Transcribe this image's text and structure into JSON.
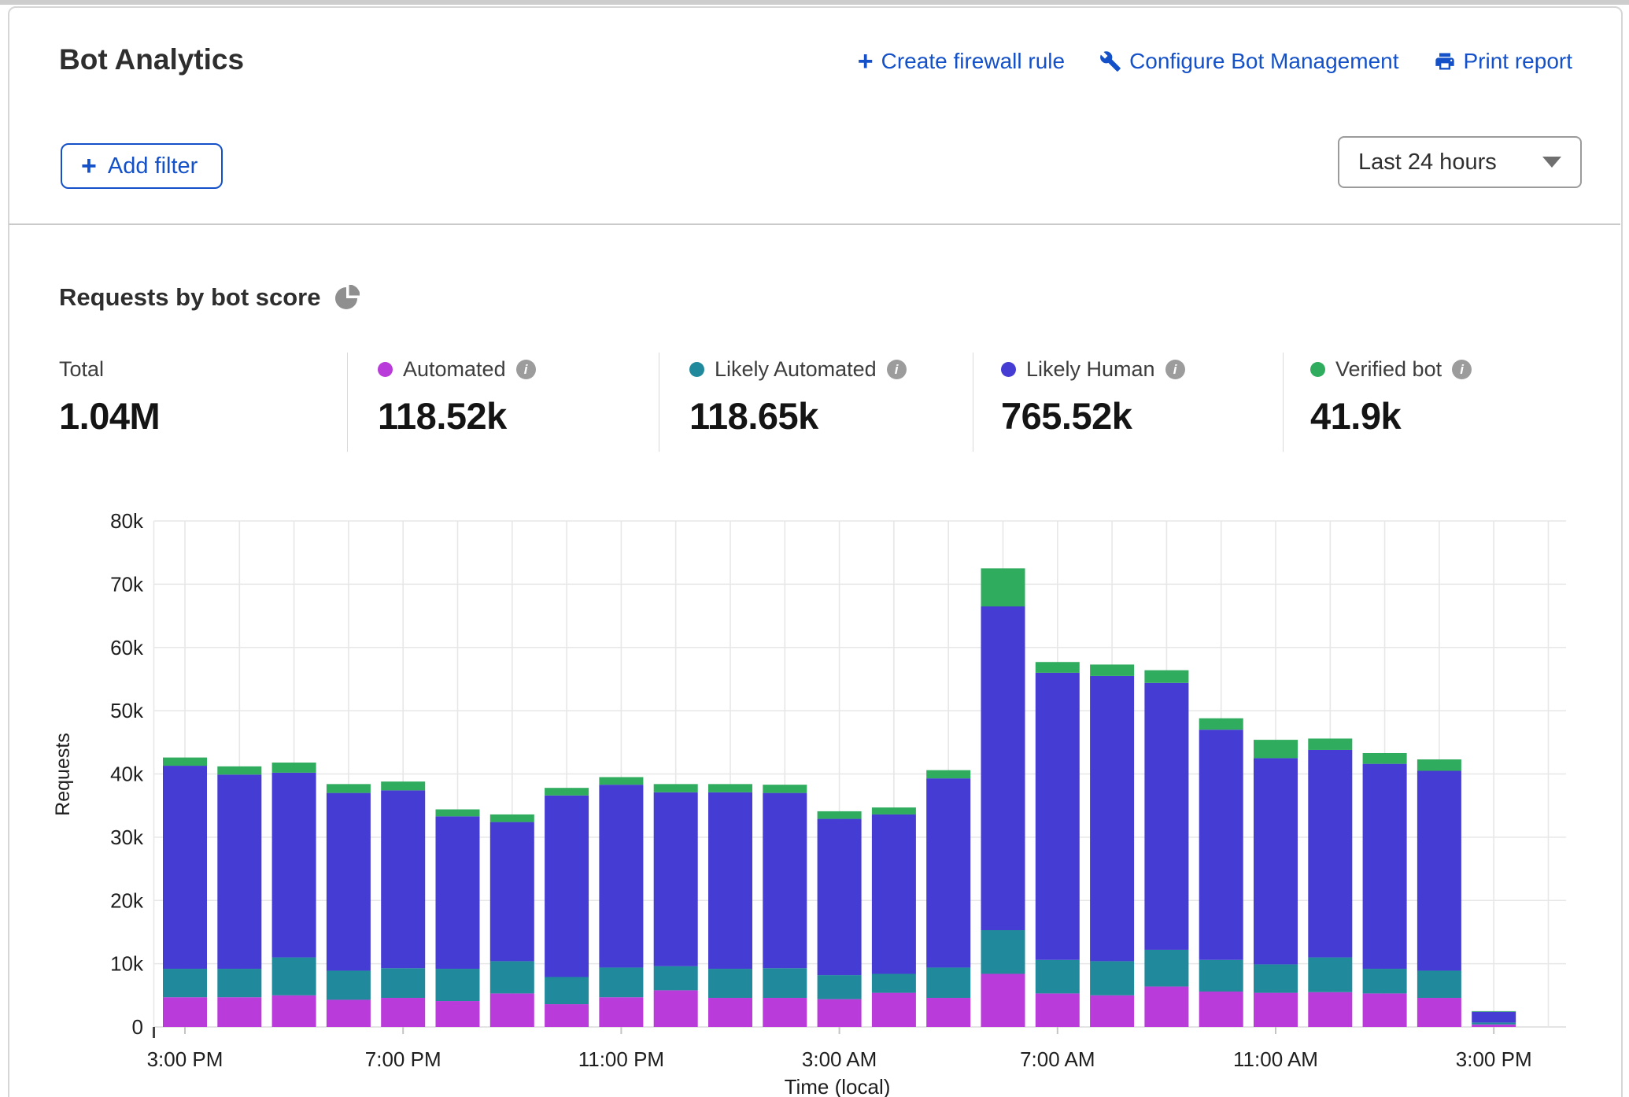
{
  "header": {
    "title": "Bot Analytics",
    "actions": [
      {
        "label": "Create firewall rule",
        "icon": "plus"
      },
      {
        "label": "Configure Bot Management",
        "icon": "wrench"
      },
      {
        "label": "Print report",
        "icon": "printer"
      }
    ],
    "add_filter_label": "Add filter",
    "time_range": "Last 24 hours"
  },
  "section": {
    "title": "Requests by bot score"
  },
  "stats": {
    "total": {
      "label": "Total",
      "value": "1.04M"
    },
    "series": [
      {
        "label": "Automated",
        "value": "118.52k",
        "color": "#b93bd9"
      },
      {
        "label": "Likely Automated",
        "value": "118.65k",
        "color": "#20899b"
      },
      {
        "label": "Likely Human",
        "value": "765.52k",
        "color": "#453cd3"
      },
      {
        "label": "Verified bot",
        "value": "41.9k",
        "color": "#2fac5d"
      }
    ]
  },
  "chart_data": {
    "type": "bar",
    "stacked": true,
    "title": "Requests by bot score",
    "xlabel": "Time (local)",
    "ylabel": "Requests",
    "ylim": [
      0,
      80000
    ],
    "grid": true,
    "legend_position": "stats row above chart",
    "y_ticks": [
      "0",
      "10k",
      "20k",
      "30k",
      "40k",
      "50k",
      "60k",
      "70k",
      "80k"
    ],
    "x_tick_labels": [
      "3:00 PM",
      "7:00 PM",
      "11:00 PM",
      "3:00 AM",
      "7:00 AM",
      "11:00 AM",
      "3:00 PM"
    ],
    "x_tick_positions": [
      0,
      4,
      8,
      12,
      16,
      20,
      24
    ],
    "categories": [
      "3:00 PM",
      "4:00 PM",
      "5:00 PM",
      "6:00 PM",
      "7:00 PM",
      "8:00 PM",
      "9:00 PM",
      "10:00 PM",
      "11:00 PM",
      "12:00 AM",
      "1:00 AM",
      "2:00 AM",
      "3:00 AM",
      "4:00 AM",
      "5:00 AM",
      "6:00 AM",
      "7:00 AM",
      "8:00 AM",
      "9:00 AM",
      "10:00 AM",
      "11:00 AM",
      "12:00 PM",
      "1:00 PM",
      "2:00 PM",
      "3:00 PM"
    ],
    "series": [
      {
        "name": "Automated",
        "color": "#b93bd9",
        "values": [
          4700,
          4700,
          5000,
          4300,
          4600,
          4100,
          5300,
          3600,
          4700,
          5800,
          4600,
          4600,
          4400,
          5400,
          4600,
          8400,
          5300,
          5000,
          6400,
          5600,
          5400,
          5500,
          5300,
          4600,
          400
        ]
      },
      {
        "name": "Likely Automated",
        "color": "#20899b",
        "values": [
          4500,
          4500,
          6000,
          4600,
          4700,
          5100,
          5100,
          4300,
          4700,
          3800,
          4600,
          4700,
          3800,
          3000,
          4800,
          6900,
          5300,
          5400,
          5800,
          5000,
          4500,
          5500,
          3900,
          4300,
          300
        ]
      },
      {
        "name": "Likely Human",
        "color": "#453cd3",
        "values": [
          32100,
          30700,
          29200,
          28100,
          28100,
          24100,
          22000,
          28700,
          28900,
          27500,
          27900,
          27700,
          24700,
          25200,
          29900,
          51200,
          45400,
          45100,
          42200,
          36400,
          32600,
          32800,
          32400,
          31600,
          1700
        ]
      },
      {
        "name": "Verified bot",
        "color": "#2fac5d",
        "values": [
          1300,
          1300,
          1600,
          1400,
          1400,
          1100,
          1200,
          1200,
          1200,
          1300,
          1300,
          1300,
          1200,
          1100,
          1300,
          6000,
          1700,
          1800,
          2000,
          1800,
          2900,
          1800,
          1700,
          1800,
          100
        ]
      }
    ]
  }
}
